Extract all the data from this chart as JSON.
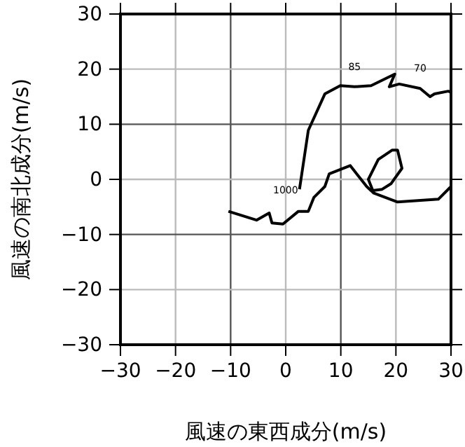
{
  "chart_data": {
    "type": "line",
    "xlabel": "風速の東西成分(m/s)",
    "ylabel": "風速の南北成分(m/s)",
    "xlim": [
      -30,
      30
    ],
    "ylim": [
      -30,
      30
    ],
    "xticks": [
      -30,
      -20,
      -10,
      0,
      10,
      20,
      30
    ],
    "yticks": [
      -30,
      -20,
      -10,
      0,
      10,
      20,
      30
    ],
    "grid": true,
    "marker": "none",
    "line_style": "solid",
    "series": [
      {
        "color": "#000000",
        "x": [
          2.5,
          4.1,
          7.1,
          9.9,
          12.5,
          15.5,
          19.8,
          18.8,
          20.6,
          24.4,
          26.2,
          27.0,
          29.5,
          30.0
        ],
        "values": [
          -1.8,
          8.9,
          15.5,
          17.0,
          16.8,
          17.0,
          19.1,
          16.8,
          17.3,
          16.5,
          15.0,
          15.5,
          16.0,
          15.8
        ]
      },
      {
        "color": "#000000",
        "x": [
          -10.4,
          -5.3,
          -3.0,
          -2.5,
          -0.5,
          2.3,
          4.1,
          5.1,
          7.1,
          7.9,
          11.7,
          14.7,
          16.0,
          20.3,
          27.7,
          30.0
        ],
        "values": [
          -5.8,
          -7.4,
          -6.1,
          -7.9,
          -8.1,
          -5.8,
          -5.8,
          -3.3,
          -1.3,
          1.0,
          2.5,
          -1.3,
          -2.5,
          -4.1,
          -3.6,
          -1.3
        ]
      },
      {
        "color": "#000000",
        "x": [
          16.0,
          15.0,
          16.8,
          19.3,
          20.3,
          21.1,
          19.1,
          17.5,
          16.0
        ],
        "values": [
          -2.5,
          0.0,
          3.6,
          5.3,
          5.3,
          2.0,
          -0.8,
          -1.8,
          -2.0
        ]
      }
    ],
    "annotations": [
      {
        "text": "1000",
        "x": 2.5,
        "y": -1.8
      },
      {
        "text": "85",
        "x": 12.5,
        "y": 16.8
      },
      {
        "text": "70",
        "x": 24.4,
        "y": 16.5
      }
    ]
  }
}
